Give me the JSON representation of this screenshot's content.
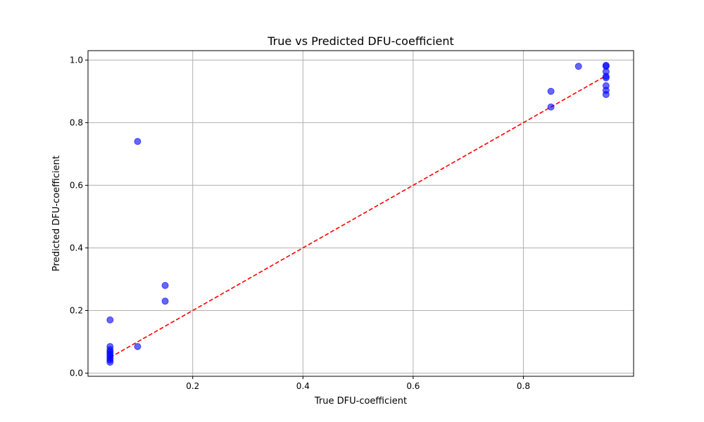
{
  "chart_data": {
    "type": "scatter",
    "title": "True vs Predicted DFU-coefficient",
    "xlabel": "True DFU-coefficient",
    "ylabel": "Predicted DFU-coefficient",
    "xlim": [
      0.01,
      1.0
    ],
    "ylim": [
      -0.01,
      1.03
    ],
    "xticks": [
      0.2,
      0.4,
      0.6,
      0.8
    ],
    "yticks": [
      0.0,
      0.2,
      0.4,
      0.6,
      0.8,
      1.0
    ],
    "xtick_labels": [
      "0.2",
      "0.4",
      "0.6",
      "0.8"
    ],
    "ytick_labels": [
      "0.0",
      "0.2",
      "0.4",
      "0.6",
      "0.8",
      "1.0"
    ],
    "grid": true,
    "point_color": "#0000ff",
    "line_color": "#ff0000",
    "points": [
      {
        "x": 0.05,
        "y": 0.17
      },
      {
        "x": 0.05,
        "y": 0.085
      },
      {
        "x": 0.05,
        "y": 0.075
      },
      {
        "x": 0.05,
        "y": 0.068
      },
      {
        "x": 0.05,
        "y": 0.062
      },
      {
        "x": 0.05,
        "y": 0.055
      },
      {
        "x": 0.05,
        "y": 0.048
      },
      {
        "x": 0.05,
        "y": 0.042
      },
      {
        "x": 0.05,
        "y": 0.035
      },
      {
        "x": 0.1,
        "y": 0.74
      },
      {
        "x": 0.1,
        "y": 0.085
      },
      {
        "x": 0.15,
        "y": 0.28
      },
      {
        "x": 0.15,
        "y": 0.23
      },
      {
        "x": 0.85,
        "y": 0.9
      },
      {
        "x": 0.85,
        "y": 0.85
      },
      {
        "x": 0.9,
        "y": 0.98
      },
      {
        "x": 0.95,
        "y": 0.983
      },
      {
        "x": 0.95,
        "y": 0.98
      },
      {
        "x": 0.95,
        "y": 0.963
      },
      {
        "x": 0.95,
        "y": 0.948
      },
      {
        "x": 0.95,
        "y": 0.943
      },
      {
        "x": 0.95,
        "y": 0.918
      },
      {
        "x": 0.95,
        "y": 0.903
      },
      {
        "x": 0.95,
        "y": 0.89
      }
    ],
    "reference_line": {
      "x": [
        0.05,
        0.95
      ],
      "y": [
        0.05,
        0.95
      ],
      "style": "dashed"
    }
  }
}
